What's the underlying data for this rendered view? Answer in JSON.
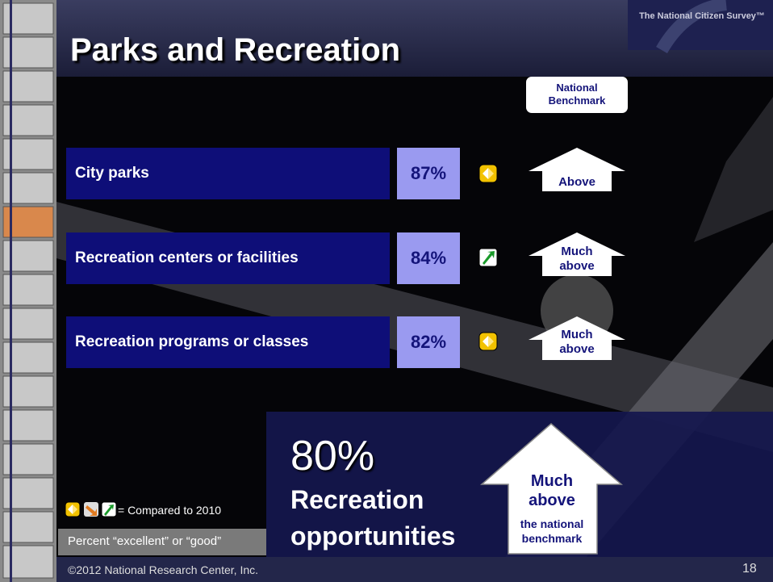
{
  "header": {
    "title": "Parks and Recreation",
    "logo": "The National Citizen Survey™"
  },
  "benchmark_header": "National Benchmark",
  "rows": [
    {
      "label": "City parks",
      "percent": "87%",
      "benchmark": "Above"
    },
    {
      "label": "Recreation centers or facilities",
      "percent": "84%",
      "benchmark": "Much above"
    },
    {
      "label": "Recreation programs or classes",
      "percent": "82%",
      "benchmark": "Much above"
    }
  ],
  "summary": {
    "percent": "80%",
    "label": "Recreation opportunities",
    "benchmark": "Much above",
    "benchmark_note": "the national benchmark"
  },
  "legend": "= Compared to 2010",
  "note": "Percent “excellent” or “good”",
  "footer": {
    "copyright": "©2012 National Research Center, Inc.",
    "page": "18"
  }
}
